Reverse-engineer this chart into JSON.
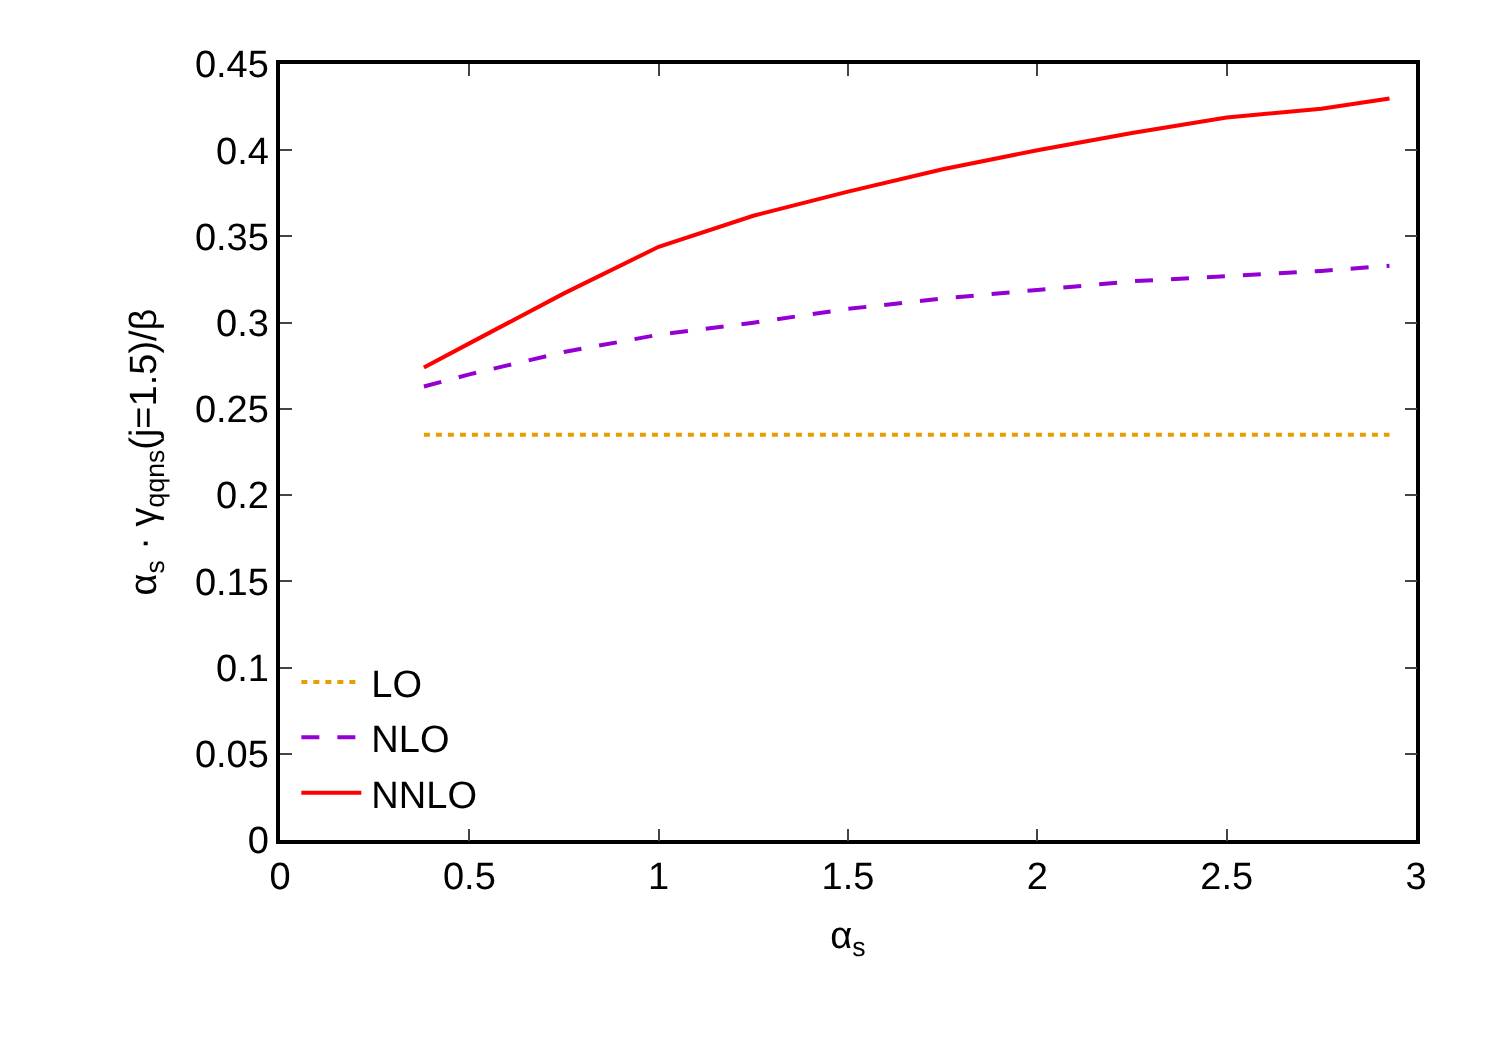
{
  "chart_data": {
    "type": "line",
    "xlabel": "α$_{s}$",
    "ylabel": "α$_{s}$ · γ$_{qqns}$(j=1.5)/β",
    "x": [
      0.38,
      0.5,
      0.75,
      1,
      1.25,
      1.5,
      1.75,
      2,
      2.25,
      2.5,
      2.75,
      2.93
    ],
    "xlim": [
      0,
      3
    ],
    "xticks": [
      0,
      0.5,
      1,
      1.5,
      2,
      2.5,
      3
    ],
    "ylim": [
      0,
      0.45
    ],
    "yticks": [
      0,
      0.05,
      0.1,
      0.15,
      0.2,
      0.25,
      0.3,
      0.35,
      0.4,
      0.45
    ],
    "grid": false,
    "legend": "bottom left",
    "marker": "none",
    "series": [
      {
        "name": "LO",
        "color": "#e69f00",
        "line_style": "dotted",
        "values": [
          0.235,
          0.235,
          0.235,
          0.235,
          0.235,
          0.235,
          0.235,
          0.235,
          0.235,
          0.235,
          0.235,
          0.235
        ]
      },
      {
        "name": "NLO",
        "color": "#9400d3",
        "line_style": "dashed",
        "values": [
          0.263,
          0.27,
          0.283,
          0.293,
          0.3,
          0.308,
          0.314,
          0.319,
          0.324,
          0.327,
          0.33,
          0.333
        ]
      },
      {
        "name": "NNLO",
        "color": "#ff0000",
        "line_style": "solid",
        "values": [
          0.274,
          0.288,
          0.317,
          0.344,
          0.362,
          0.376,
          0.389,
          0.4,
          0.41,
          0.419,
          0.424,
          0.43
        ]
      }
    ]
  }
}
